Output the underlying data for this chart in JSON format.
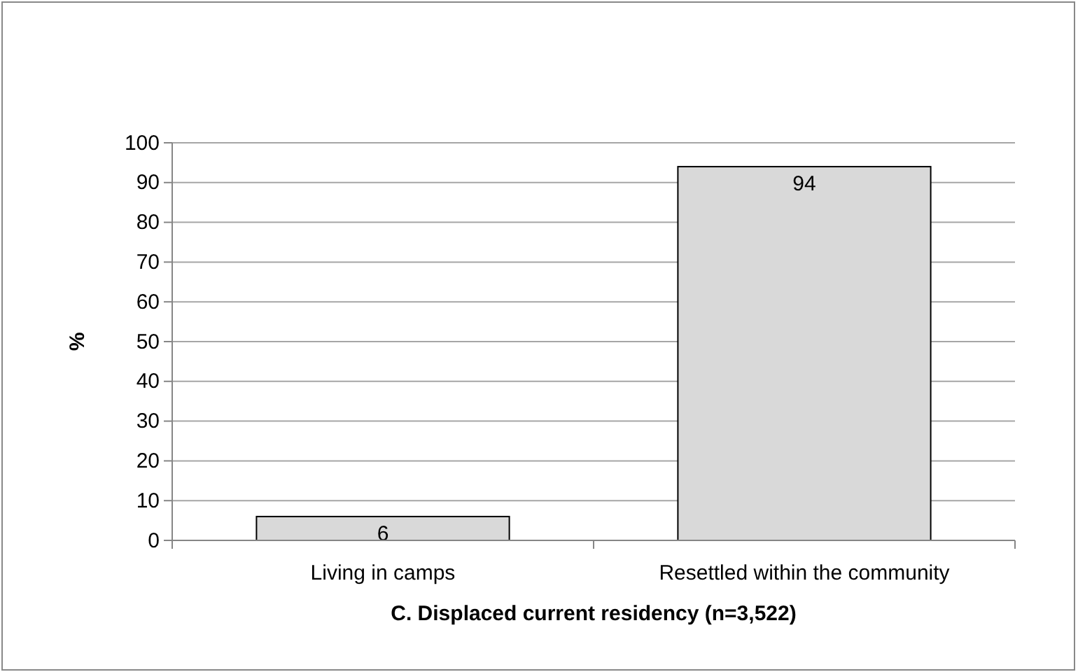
{
  "chart_data": {
    "type": "bar",
    "xlabel": "C. Displaced current residency (n=3,522)",
    "ylabel": "%",
    "categories": [
      "Living in camps",
      "Resettled within the community"
    ],
    "values": [
      6,
      94
    ],
    "color": "#d9d9d9",
    "ylim": [
      0,
      100
    ],
    "yticks": [
      0,
      10,
      20,
      30,
      40,
      50,
      60,
      70,
      80,
      90,
      100
    ],
    "grid": "y",
    "data_labels": true
  }
}
